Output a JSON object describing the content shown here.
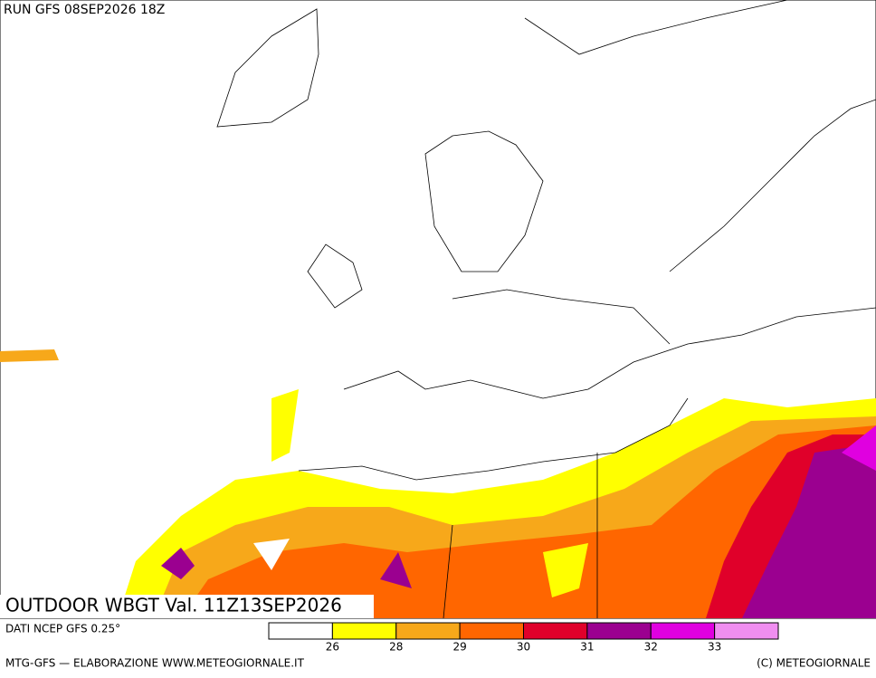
{
  "header": {
    "run": "RUN GFS 08SEP2026 18Z"
  },
  "map": {
    "title": "OUTDOOR WBGT Val. 11Z13SEP2026",
    "source": "DATI NCEP GFS 0.25°"
  },
  "legend": {
    "colors": [
      "#ffffff",
      "#ffff00",
      "#f7a81a",
      "#ff6600",
      "#e0002a",
      "#9b0090",
      "#e000e0",
      "#f08ef0"
    ],
    "ticks": [
      26,
      28,
      29,
      30,
      31,
      32,
      33
    ]
  },
  "footer": {
    "left": "MTG-GFS — ELABORAZIONE WWW.METEOGIORNALE.IT",
    "right": "(C) METEOGIORNALE"
  }
}
